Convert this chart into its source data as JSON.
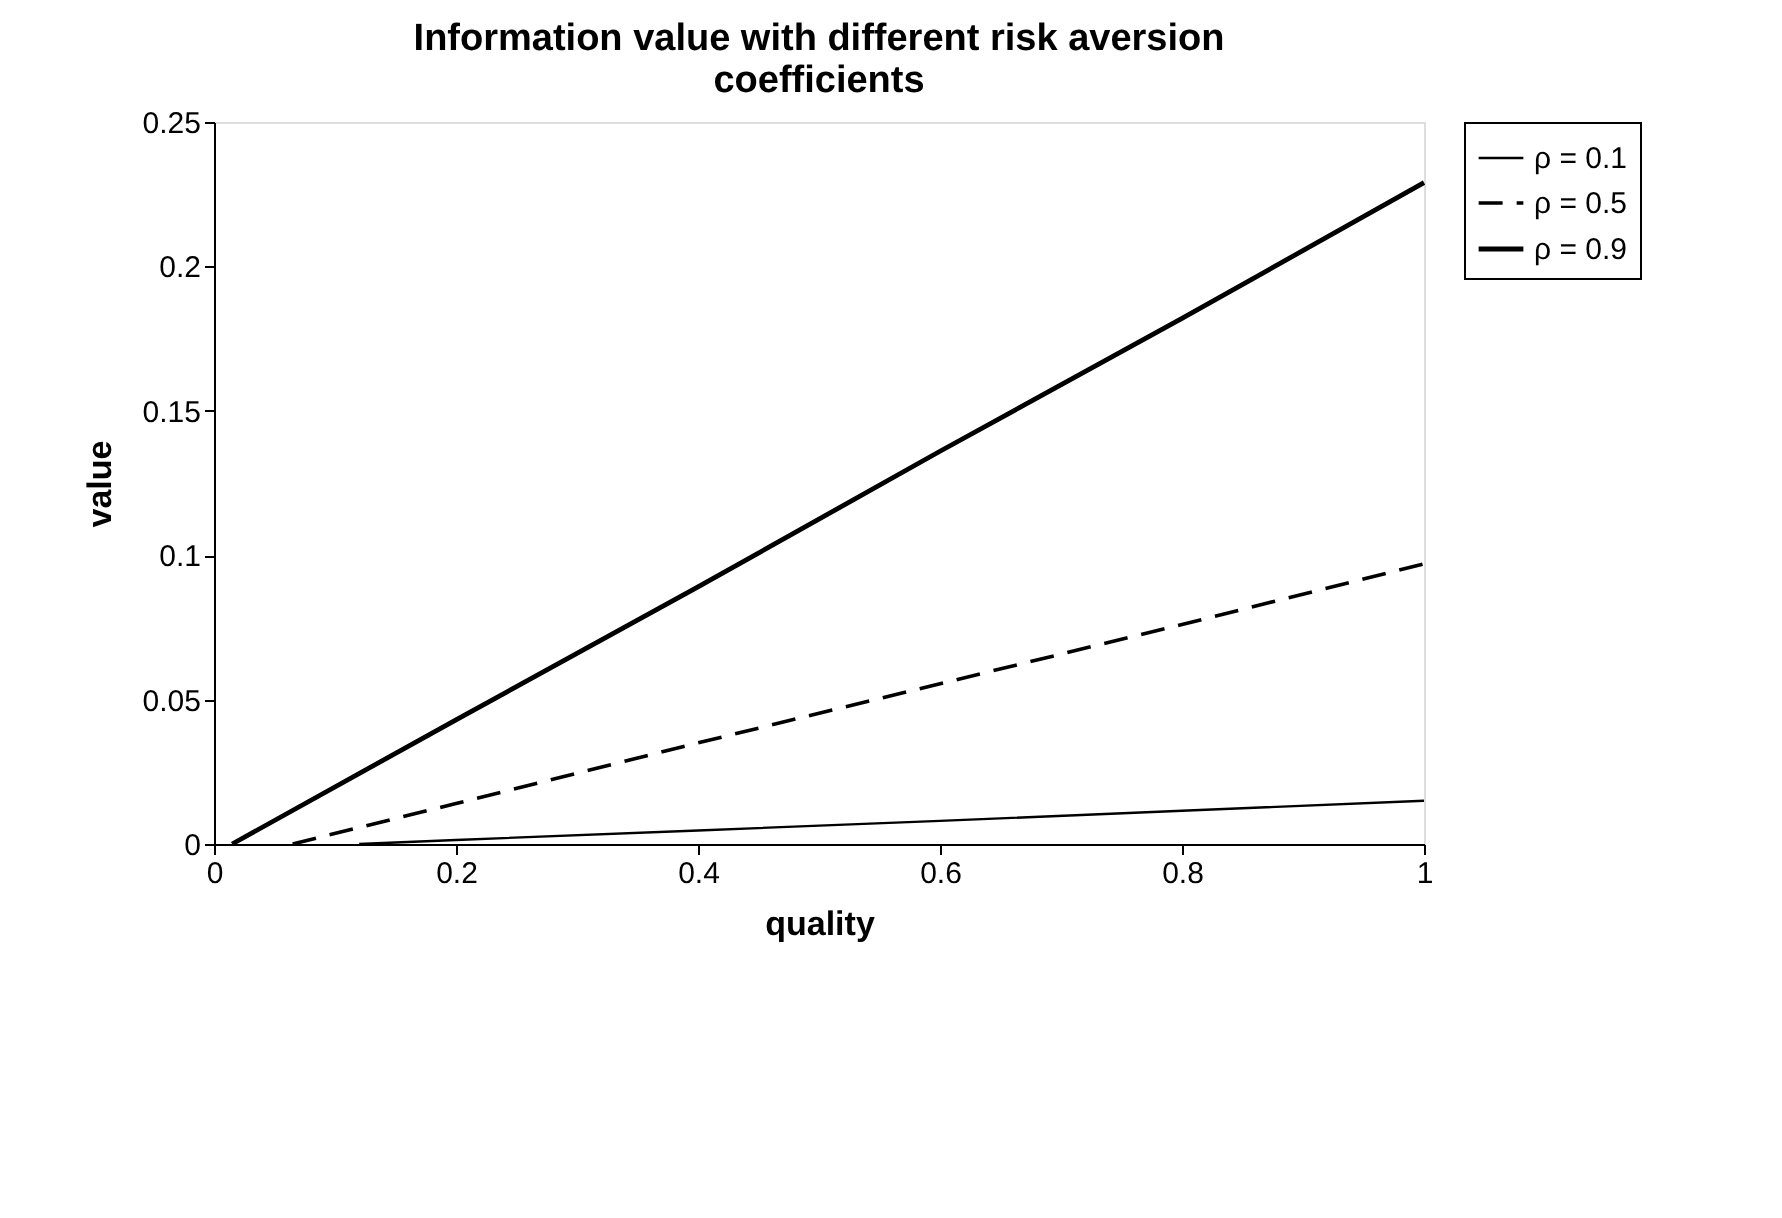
{
  "chart_data": {
    "type": "line",
    "title": "Information value with different risk aversion coefficients",
    "xlabel": "quality",
    "ylabel": "value",
    "series": [
      {
        "name": "ρ = 0.1",
        "color": "#000000",
        "line_style": "solid",
        "x": [
          0.12,
          0.2,
          0.4,
          0.6,
          0.8,
          1
        ],
        "values": [
          0,
          0.0014,
          0.0047,
          0.008,
          0.0115,
          0.015
        ]
      },
      {
        "name": "ρ = 0.5",
        "color": "#000000",
        "line_style": "dashed",
        "x": [
          0.065,
          0.2,
          0.4,
          0.6,
          0.8,
          1
        ],
        "values": [
          0,
          0.014,
          0.035,
          0.0555,
          0.076,
          0.097
        ]
      },
      {
        "name": "ρ = 0.9",
        "color": "#000000",
        "line_style": "solid",
        "x": [
          0.015,
          0.2,
          0.4,
          0.6,
          0.8,
          1
        ],
        "values": [
          0,
          0.043,
          0.089,
          0.136,
          0.182,
          0.229
        ]
      }
    ],
    "xlim": [
      0,
      1
    ],
    "xticks": [
      0,
      0.2,
      0.4,
      0.6,
      0.8,
      1
    ],
    "ylim": [
      0,
      0.25
    ],
    "yticks": [
      0,
      0.05,
      0.1,
      0.15,
      0.2,
      0.25
    ],
    "grid": false,
    "legend": "right",
    "marker": "none"
  }
}
